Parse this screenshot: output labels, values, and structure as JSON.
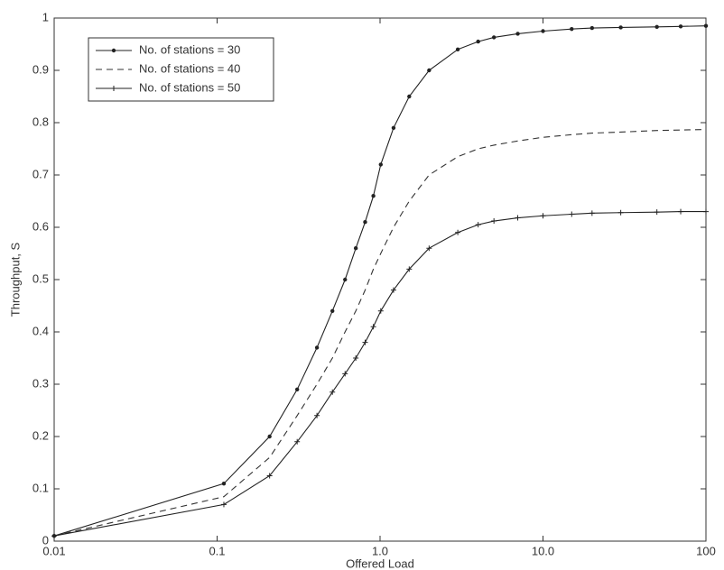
{
  "chart_data": {
    "type": "line",
    "x_label": "Offered Load",
    "y_label": "Throughput, S",
    "xscale": "log",
    "x": [
      0.01,
      0.11,
      0.21,
      0.31,
      0.41,
      0.51,
      0.61,
      0.71,
      0.81,
      0.91,
      1.01,
      1.21,
      1.51,
      2,
      3,
      4,
      5,
      7,
      10,
      15,
      20,
      30,
      50,
      70,
      100
    ],
    "series": [
      {
        "name": "No. of stations = 30",
        "color": "#222222",
        "linestyle": "solid",
        "marker": "dot",
        "values": [
          0.01,
          0.11,
          0.2,
          0.29,
          0.37,
          0.44,
          0.5,
          0.56,
          0.61,
          0.66,
          0.72,
          0.79,
          0.85,
          0.9,
          0.94,
          0.955,
          0.963,
          0.97,
          0.975,
          0.979,
          0.981,
          0.982,
          0.983,
          0.984,
          0.985
        ]
      },
      {
        "name": "No. of stations = 40",
        "color": "#333333",
        "linestyle": "dashed",
        "marker": "none",
        "values": [
          0.01,
          0.085,
          0.16,
          0.24,
          0.3,
          0.35,
          0.4,
          0.44,
          0.48,
          0.52,
          0.55,
          0.6,
          0.65,
          0.7,
          0.735,
          0.75,
          0.757,
          0.765,
          0.772,
          0.777,
          0.78,
          0.782,
          0.785,
          0.786,
          0.787
        ]
      },
      {
        "name": "No. of stations = 50",
        "color": "#222222",
        "linestyle": "solid",
        "marker": "plus",
        "values": [
          0.01,
          0.07,
          0.125,
          0.19,
          0.24,
          0.285,
          0.32,
          0.35,
          0.38,
          0.41,
          0.44,
          0.48,
          0.52,
          0.56,
          0.59,
          0.605,
          0.612,
          0.618,
          0.622,
          0.625,
          0.627,
          0.628,
          0.629,
          0.63,
          0.63
        ]
      }
    ],
    "xlim": [
      0.01,
      100
    ],
    "xticks": [
      0.01,
      0.1,
      {
        "value": 1,
        "label": "1.0"
      },
      {
        "value": 10,
        "label": "10.0"
      },
      100
    ],
    "ylim": [
      0,
      1
    ],
    "yticks": [
      0,
      0.1,
      0.2,
      0.3,
      0.4,
      0.5,
      0.6,
      0.7,
      0.8,
      0.9,
      1
    ],
    "grid": false,
    "legend": "upper-left"
  }
}
